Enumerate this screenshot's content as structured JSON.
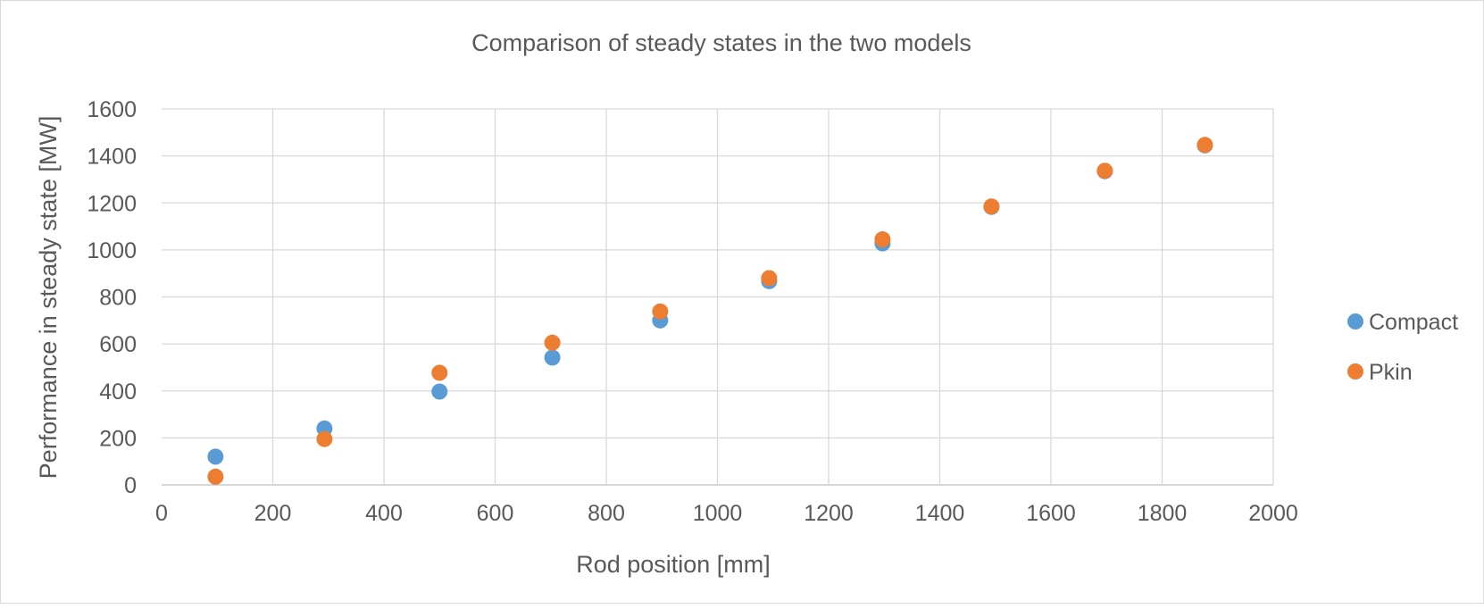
{
  "chart_data": {
    "type": "scatter",
    "title": "Comparison of steady states in the two models",
    "xlabel": "Rod position [mm]",
    "ylabel": "Performance in steady state [MW]",
    "xlim": [
      0,
      2000
    ],
    "ylim": [
      0,
      1600
    ],
    "xticks": [
      0,
      200,
      400,
      600,
      800,
      1000,
      1200,
      1400,
      1600,
      1800,
      2000
    ],
    "yticks": [
      0,
      200,
      400,
      600,
      800,
      1000,
      1200,
      1400,
      1600
    ],
    "grid": true,
    "legend_position": "right",
    "series": [
      {
        "name": "Compact",
        "color": "#5b9bd5",
        "points": [
          {
            "x": 97,
            "y": 120
          },
          {
            "x": 293,
            "y": 240
          },
          {
            "x": 500,
            "y": 397
          },
          {
            "x": 703,
            "y": 542
          },
          {
            "x": 897,
            "y": 700
          },
          {
            "x": 1093,
            "y": 867
          },
          {
            "x": 1297,
            "y": 1028
          },
          {
            "x": 1493,
            "y": 1183
          },
          {
            "x": 1697,
            "y": 1335
          },
          {
            "x": 1877,
            "y": 1445
          }
        ]
      },
      {
        "name": "Pkin",
        "color": "#ed7d31",
        "points": [
          {
            "x": 97,
            "y": 35
          },
          {
            "x": 293,
            "y": 195
          },
          {
            "x": 500,
            "y": 477
          },
          {
            "x": 703,
            "y": 605
          },
          {
            "x": 897,
            "y": 738
          },
          {
            "x": 1093,
            "y": 880
          },
          {
            "x": 1297,
            "y": 1045
          },
          {
            "x": 1493,
            "y": 1185
          },
          {
            "x": 1697,
            "y": 1337
          },
          {
            "x": 1877,
            "y": 1447
          }
        ]
      }
    ]
  }
}
